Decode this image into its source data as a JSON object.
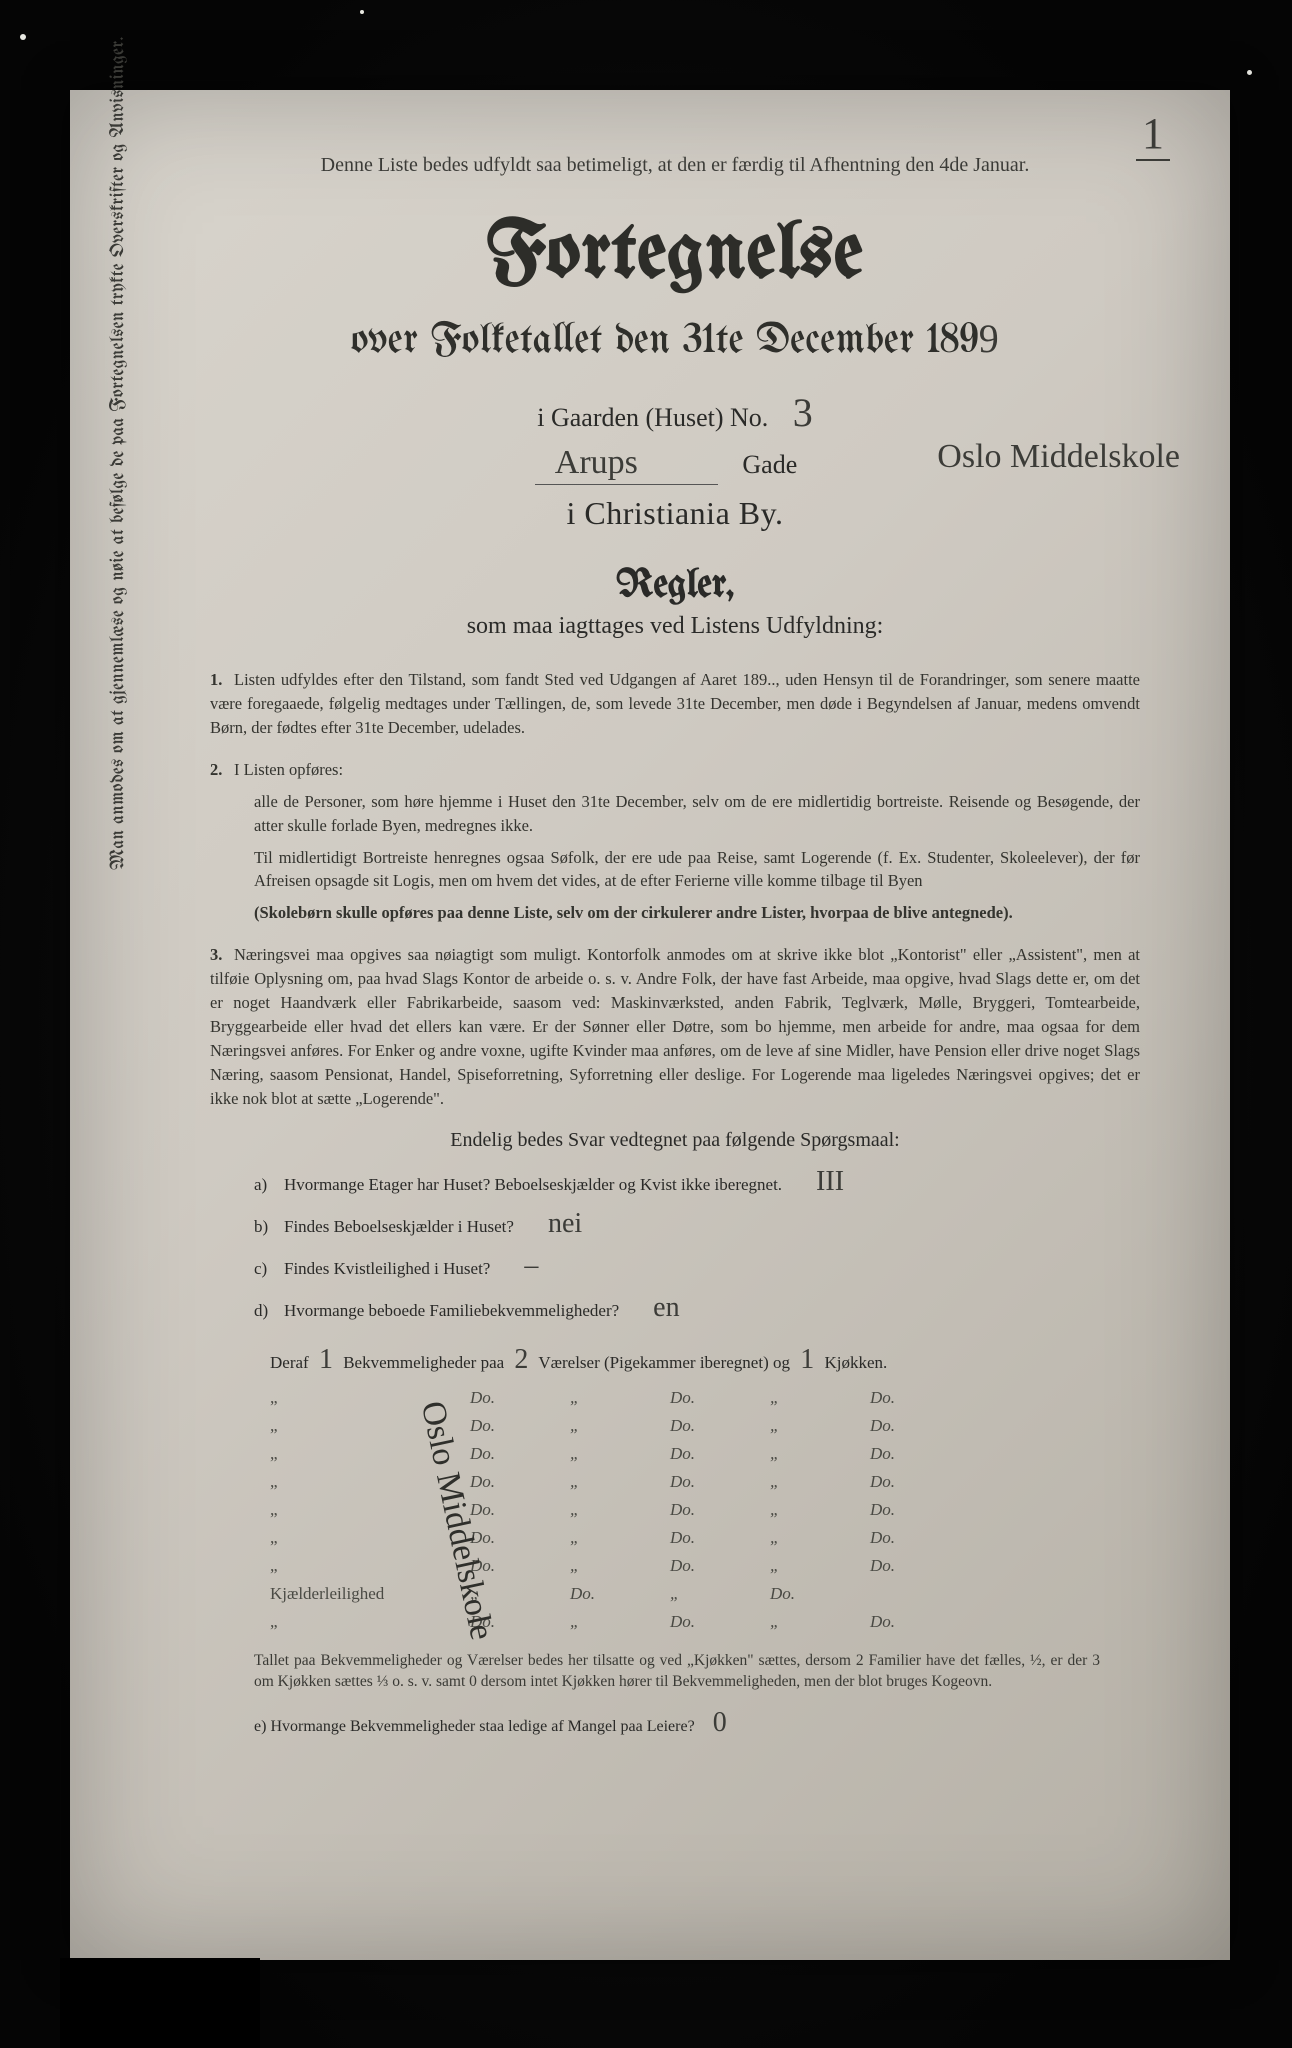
{
  "corner_number": "1",
  "top_note": "Denne Liste bedes udfyldt saa betimeligt, at den er færdig til Afhentning den 4de Januar.",
  "title_main": "Fortegnelse",
  "title_sub_prefix": "over Folketallet den 31te December 189",
  "title_sub_year_hand": "9",
  "gaard_label": "i Gaarden (Huset) No.",
  "gaard_no_hand": "3",
  "street_hand": "Arups",
  "gade_label": "Gade",
  "right_margin_hand": "Oslo Middelskole",
  "city_line": "i Christiania By.",
  "regler_head": "Regler,",
  "regler_sub": "som maa iagttages ved Listens Udfyldning:",
  "rules": {
    "r1": "Listen udfyldes efter den Tilstand, som fandt Sted ved Udgangen af Aaret 189.., uden Hensyn til de Forandringer, som senere maatte være foregaaede, følgelig medtages under Tællingen, de, som levede 31te December, men døde i Begyndelsen af Januar, medens omvendt Børn, der fødtes efter 31te December, udelades.",
    "r2a": "I Listen opføres:",
    "r2b": "alle de Personer, som høre hjemme i Huset den 31te December, selv om de ere midlertidig bortreiste. Reisende og Besøgende, der atter skulle forlade Byen, medregnes ikke.",
    "r2c": "Til midlertidigt Bortreiste henregnes ogsaa Søfolk, der ere ude paa Reise, samt Logerende (f. Ex. Studenter, Skoleelever), der før Afreisen opsagde sit Logis, men om hvem det vides, at de efter Ferierne ville komme tilbage til Byen",
    "r2d": "(Skolebørn skulle opføres paa denne Liste, selv om der cirkulerer andre Lister, hvorpaa de blive antegnede).",
    "r3": "Næringsvei maa opgives saa nøiagtigt som muligt. Kontorfolk anmodes om at skrive ikke blot „Kontorist\" eller „Assistent\", men at tilføie Oplysning om, paa hvad Slags Kontor de arbeide o. s. v. Andre Folk, der have fast Arbeide, maa opgive, hvad Slags dette er, om det er noget Haandværk eller Fabrikarbeide, saasom ved: Maskinværksted, anden Fabrik, Teglværk, Mølle, Bryggeri, Tomtearbeide, Bryggearbeide eller hvad det ellers kan være. Er der Sønner eller Døtre, som bo hjemme, men arbeide for andre, maa ogsaa for dem Næringsvei anføres. For Enker og andre voxne, ugifte Kvinder maa anføres, om de leve af sine Midler, have Pension eller drive noget Slags Næring, saasom Pensionat, Handel, Spiseforretning, Syforretning eller deslige. For Logerende maa ligeledes Næringsvei opgives; det er ikke nok blot at sætte „Logerende\"."
  },
  "sub_head": "Endelig bedes Svar vedtegnet paa følgende Spørgsmaal:",
  "questions": {
    "a": {
      "label": "a)",
      "text": "Hvormange Etager har Huset?  Beboelseskjælder og Kvist ikke iberegnet.",
      "ans": "III"
    },
    "b": {
      "label": "b)",
      "text": "Findes Beboelseskjælder i Huset?",
      "ans": "nei"
    },
    "c": {
      "label": "c)",
      "text": "Findes Kvistleilighed i Huset?",
      "ans": "–"
    },
    "d": {
      "label": "d)",
      "text": "Hvormange beboede Familiebekvemmeligheder?",
      "ans": "en"
    }
  },
  "deraf": {
    "prefix": "Deraf",
    "count1": "1",
    "mid1": "Bekvemmeligheder paa",
    "count2": "2",
    "mid2": "Værelser (Pigekammer iberegnet) og",
    "count3": "1",
    "tail": "Kjøkken."
  },
  "table": {
    "rows": [
      {
        "lead": "„",
        "c": [
          "Do.",
          "„",
          "Do.",
          "„",
          "Do."
        ]
      },
      {
        "lead": "„",
        "c": [
          "Do.",
          "„",
          "Do.",
          "„",
          "Do."
        ]
      },
      {
        "lead": "„",
        "c": [
          "Do.",
          "„",
          "Do.",
          "„",
          "Do."
        ]
      },
      {
        "lead": "„",
        "c": [
          "Do.",
          "„",
          "Do.",
          "„",
          "Do."
        ]
      },
      {
        "lead": "„",
        "c": [
          "Do.",
          "„",
          "Do.",
          "„",
          "Do."
        ]
      },
      {
        "lead": "„",
        "c": [
          "Do.",
          "„",
          "Do.",
          "„",
          "Do."
        ]
      },
      {
        "lead": "„",
        "c": [
          "Do.",
          "„",
          "Do.",
          "„",
          "Do."
        ]
      },
      {
        "lead": "Kjælderleilighed",
        "c": [
          "„",
          "Do.",
          "„",
          "Do."
        ]
      },
      {
        "lead": "„",
        "c": [
          "Do.",
          "„",
          "Do.",
          "„",
          "Do."
        ]
      }
    ],
    "vertical_hand": "Oslo Middelskole"
  },
  "foot_para": "Tallet paa Bekvemmeligheder og Værelser bedes her tilsatte og ved „Kjøkken\" sættes, dersom 2 Familier have det fælles, ½, er der 3 om Kjøkken sættes ⅓ o. s. v. samt 0 dersom intet Kjøkken hører til Bekvemmeligheden, men der blot bruges Kogeovn.",
  "q_e": {
    "label": "e)",
    "text": "Hvormange Bekvemmeligheder staa ledige af Mangel paa Leiere?",
    "ans": "0"
  },
  "vertical_margin": "Man anmodes om at gjennemlæse og nøie at befølge de paa Fortegnelsen trykte Overskrifter og Anvisninger."
}
